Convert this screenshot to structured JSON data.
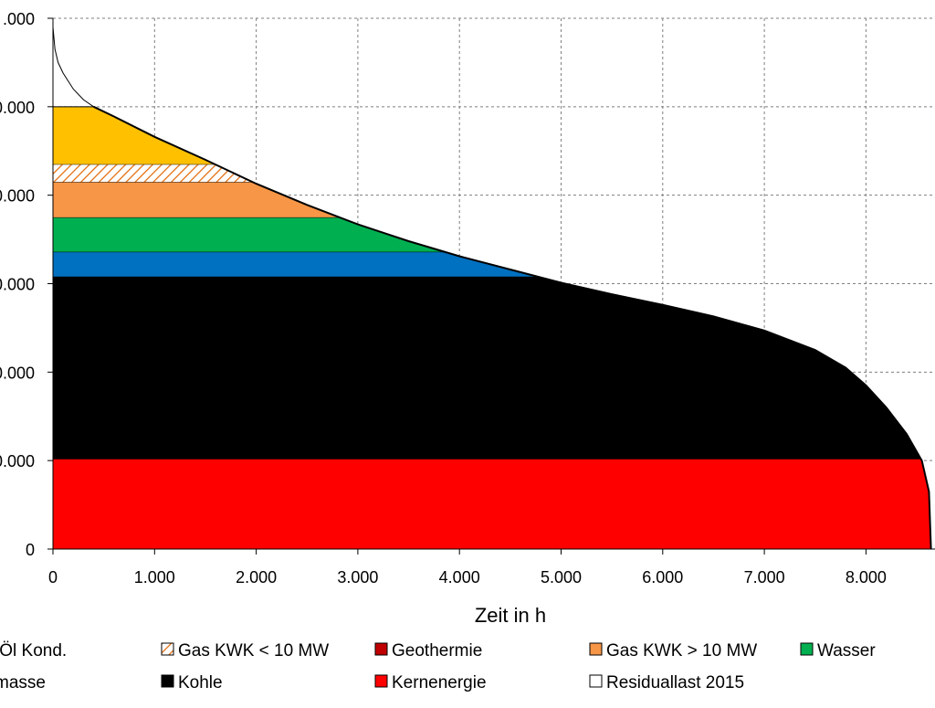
{
  "chart_data": {
    "type": "area",
    "title": "",
    "xlabel": "Zeit in h",
    "ylabel": "",
    "xlim": [
      0,
      8640
    ],
    "ylim": [
      0,
      60000
    ],
    "x_ticks": [
      0,
      1000,
      2000,
      3000,
      4000,
      5000,
      6000,
      7000,
      8000
    ],
    "x_tick_labels": [
      "0",
      "1.000",
      "2.000",
      "3.000",
      "4.000",
      "5.000",
      "6.000",
      "7.000",
      "8.000"
    ],
    "y_ticks": [
      0,
      10000,
      20000,
      30000,
      40000,
      50000,
      60000
    ],
    "y_tick_labels": [
      "0",
      "0.000",
      "0.000",
      "0.000",
      "0.000",
      "0.000",
      ".000"
    ],
    "grid": true,
    "residual_curve": {
      "name": "Residuallast 2015",
      "x": [
        0,
        20,
        50,
        100,
        200,
        300,
        400,
        600,
        1000,
        1500,
        2000,
        2500,
        3000,
        3500,
        4000,
        4500,
        5000,
        5500,
        6000,
        6500,
        7000,
        7500,
        7800,
        8000,
        8200,
        8400,
        8550,
        8620,
        8640
      ],
      "y": [
        59000,
        56500,
        55000,
        53800,
        52000,
        50800,
        50000,
        48900,
        46600,
        44000,
        41300,
        38900,
        36700,
        34800,
        33100,
        31600,
        30100,
        28800,
        27600,
        26300,
        24700,
        22500,
        20500,
        18500,
        16000,
        13000,
        10000,
        6500,
        0
      ]
    },
    "series": [
      {
        "name": "Kernenergie",
        "color": "#ff0000",
        "bottom": 0,
        "top": 10200
      },
      {
        "name": "Kohle",
        "color": "#000000",
        "bottom": 10200,
        "top": 30800
      },
      {
        "name": "Biomasse",
        "color": "#0070c0",
        "bottom": 30800,
        "top": 33600
      },
      {
        "name": "Wasser",
        "color": "#00b050",
        "bottom": 33600,
        "top": 37500
      },
      {
        "name": "Gas KWK > 10 MW",
        "color": "#f79646",
        "bottom": 37500,
        "top": 41500
      },
      {
        "name": "Gas KWK < 10 MW",
        "color": "hatch",
        "bottom": 41500,
        "top": 43500
      },
      {
        "name": "Gas/Öl Kond.",
        "color": "#ffc000",
        "bottom": 43500,
        "top": 50000
      }
    ],
    "legend": {
      "placement": "bottom",
      "entries": [
        {
          "label": "/Öl Kond.",
          "color": "#ffc000"
        },
        {
          "label": "Gas KWK < 10 MW",
          "color": "hatch"
        },
        {
          "label": "Geothermie",
          "color": "#c00000"
        },
        {
          "label": "Gas KWK > 10 MW",
          "color": "#f79646"
        },
        {
          "label": "Wasser",
          "color": "#00b050"
        },
        {
          "label": "masse",
          "color": "#0070c0"
        },
        {
          "label": "Kohle",
          "color": "#000000"
        },
        {
          "label": "Kernenergie",
          "color": "#ff0000"
        },
        {
          "label": "Residuallast 2015",
          "color": "#ffffff"
        }
      ]
    }
  }
}
